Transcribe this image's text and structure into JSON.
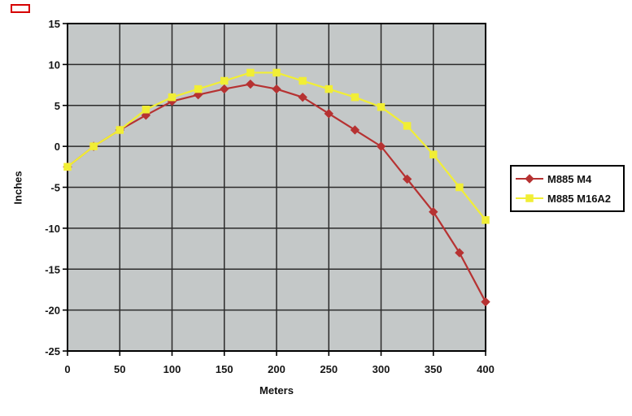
{
  "decorations": {
    "top_left_red_box_color": "#d60000"
  },
  "chart_data": {
    "type": "line",
    "xlabel": "Meters",
    "ylabel": "Inches",
    "xlim": [
      0,
      400
    ],
    "ylim": [
      -25,
      15
    ],
    "xticks": [
      0,
      50,
      100,
      150,
      200,
      250,
      300,
      350,
      400
    ],
    "yticks": [
      15,
      10,
      5,
      0,
      -5,
      -10,
      -15,
      -20,
      -25
    ],
    "grid": true,
    "plot_bg": "#c4c8c8",
    "grid_color": "#2b2b2b",
    "axis_color": "#000000",
    "legend_position": "right-outside",
    "x": [
      0,
      25,
      50,
      75,
      100,
      125,
      150,
      175,
      200,
      225,
      250,
      275,
      300,
      325,
      350,
      375,
      400
    ],
    "series": [
      {
        "name": "M885 M4",
        "color": "#b63232",
        "marker": "diamond",
        "values": [
          -2.5,
          0,
          2,
          3.8,
          5.5,
          6.3,
          7,
          7.6,
          7,
          6,
          4,
          2,
          0,
          -4,
          -8,
          -13,
          -19
        ]
      },
      {
        "name": "M885 M16A2",
        "color": "#f1ee35",
        "marker": "square",
        "values": [
          -2.5,
          0,
          2,
          4.5,
          6,
          7,
          8,
          9,
          9,
          8,
          7,
          6,
          4.8,
          2.5,
          -1,
          -5,
          -9
        ]
      }
    ]
  }
}
